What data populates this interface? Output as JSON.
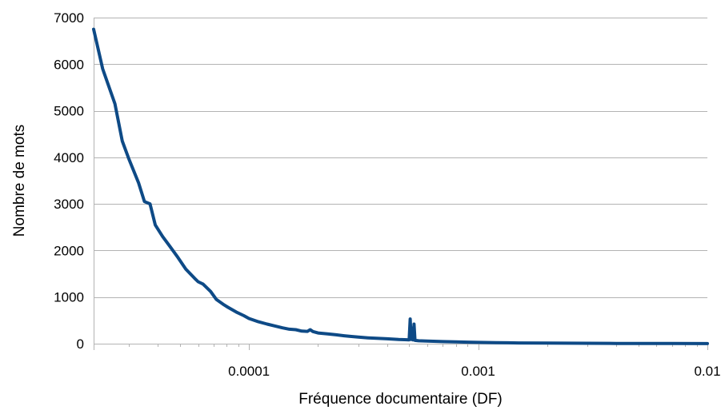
{
  "chart_data": {
    "type": "line",
    "title": "",
    "xlabel": "Fréquence documentaire (DF)",
    "ylabel": "Nombre de mots",
    "x_scale": "log",
    "xlim": [
      2.1e-05,
      0.01
    ],
    "ylim": [
      0,
      7000
    ],
    "x_ticks": [
      {
        "value": 0.0001,
        "label": "0.0001"
      },
      {
        "value": 0.001,
        "label": "0.001"
      },
      {
        "value": 0.01,
        "label": "0.01"
      }
    ],
    "y_ticks": [
      {
        "value": 0,
        "label": "0"
      },
      {
        "value": 1000,
        "label": "1000"
      },
      {
        "value": 2000,
        "label": "2000"
      },
      {
        "value": 3000,
        "label": "3000"
      },
      {
        "value": 4000,
        "label": "4000"
      },
      {
        "value": 5000,
        "label": "5000"
      },
      {
        "value": 6000,
        "label": "6000"
      },
      {
        "value": 7000,
        "label": "7000"
      }
    ],
    "grid": {
      "horizontal": true,
      "vertical": false
    },
    "legend": "none",
    "series": [
      {
        "color": "#0e4a86",
        "points": [
          [
            2.1e-05,
            6750
          ],
          [
            2.3e-05,
            5900
          ],
          [
            2.6e-05,
            5150
          ],
          [
            2.8e-05,
            4350
          ],
          [
            3e-05,
            3950
          ],
          [
            3.3e-05,
            3450
          ],
          [
            3.5e-05,
            3050
          ],
          [
            3.7e-05,
            3000
          ],
          [
            3.9e-05,
            2550
          ],
          [
            4.2e-05,
            2300
          ],
          [
            4.5e-05,
            2100
          ],
          [
            4.9e-05,
            1850
          ],
          [
            5.3e-05,
            1600
          ],
          [
            5.8e-05,
            1400
          ],
          [
            6e-05,
            1330
          ],
          [
            6.3e-05,
            1280
          ],
          [
            6.8e-05,
            1120
          ],
          [
            7.2e-05,
            950
          ],
          [
            7.8e-05,
            830
          ],
          [
            8.1e-05,
            780
          ],
          [
            8.8e-05,
            680
          ],
          [
            9.5e-05,
            600
          ],
          [
            0.0001,
            540
          ],
          [
            0.00011,
            470
          ],
          [
            0.00012,
            420
          ],
          [
            0.00013,
            380
          ],
          [
            0.00014,
            340
          ],
          [
            0.00015,
            310
          ],
          [
            0.00016,
            300
          ],
          [
            0.00017,
            270
          ],
          [
            0.00018,
            265
          ],
          [
            0.000185,
            300
          ],
          [
            0.00019,
            260
          ],
          [
            0.0002,
            230
          ],
          [
            0.00022,
            210
          ],
          [
            0.00024,
            190
          ],
          [
            0.00026,
            170
          ],
          [
            0.00028,
            155
          ],
          [
            0.0003,
            140
          ],
          [
            0.00033,
            125
          ],
          [
            0.00036,
            115
          ],
          [
            0.0004,
            105
          ],
          [
            0.00045,
            90
          ],
          [
            0.0005,
            82
          ],
          [
            0.000505,
            530
          ],
          [
            0.00051,
            90
          ],
          [
            0.000515,
            330
          ],
          [
            0.00052,
            80
          ],
          [
            0.000525,
            420
          ],
          [
            0.00053,
            70
          ],
          [
            0.00055,
            62
          ],
          [
            0.0006,
            55
          ],
          [
            0.0007,
            45
          ],
          [
            0.0008,
            38
          ],
          [
            0.0009,
            32
          ],
          [
            0.001,
            28
          ],
          [
            0.0012,
            22
          ],
          [
            0.0015,
            16
          ],
          [
            0.002,
            12
          ],
          [
            0.003,
            8
          ],
          [
            0.004,
            6
          ],
          [
            0.005,
            5
          ],
          [
            0.007,
            3
          ],
          [
            0.01,
            2
          ]
        ]
      }
    ]
  }
}
